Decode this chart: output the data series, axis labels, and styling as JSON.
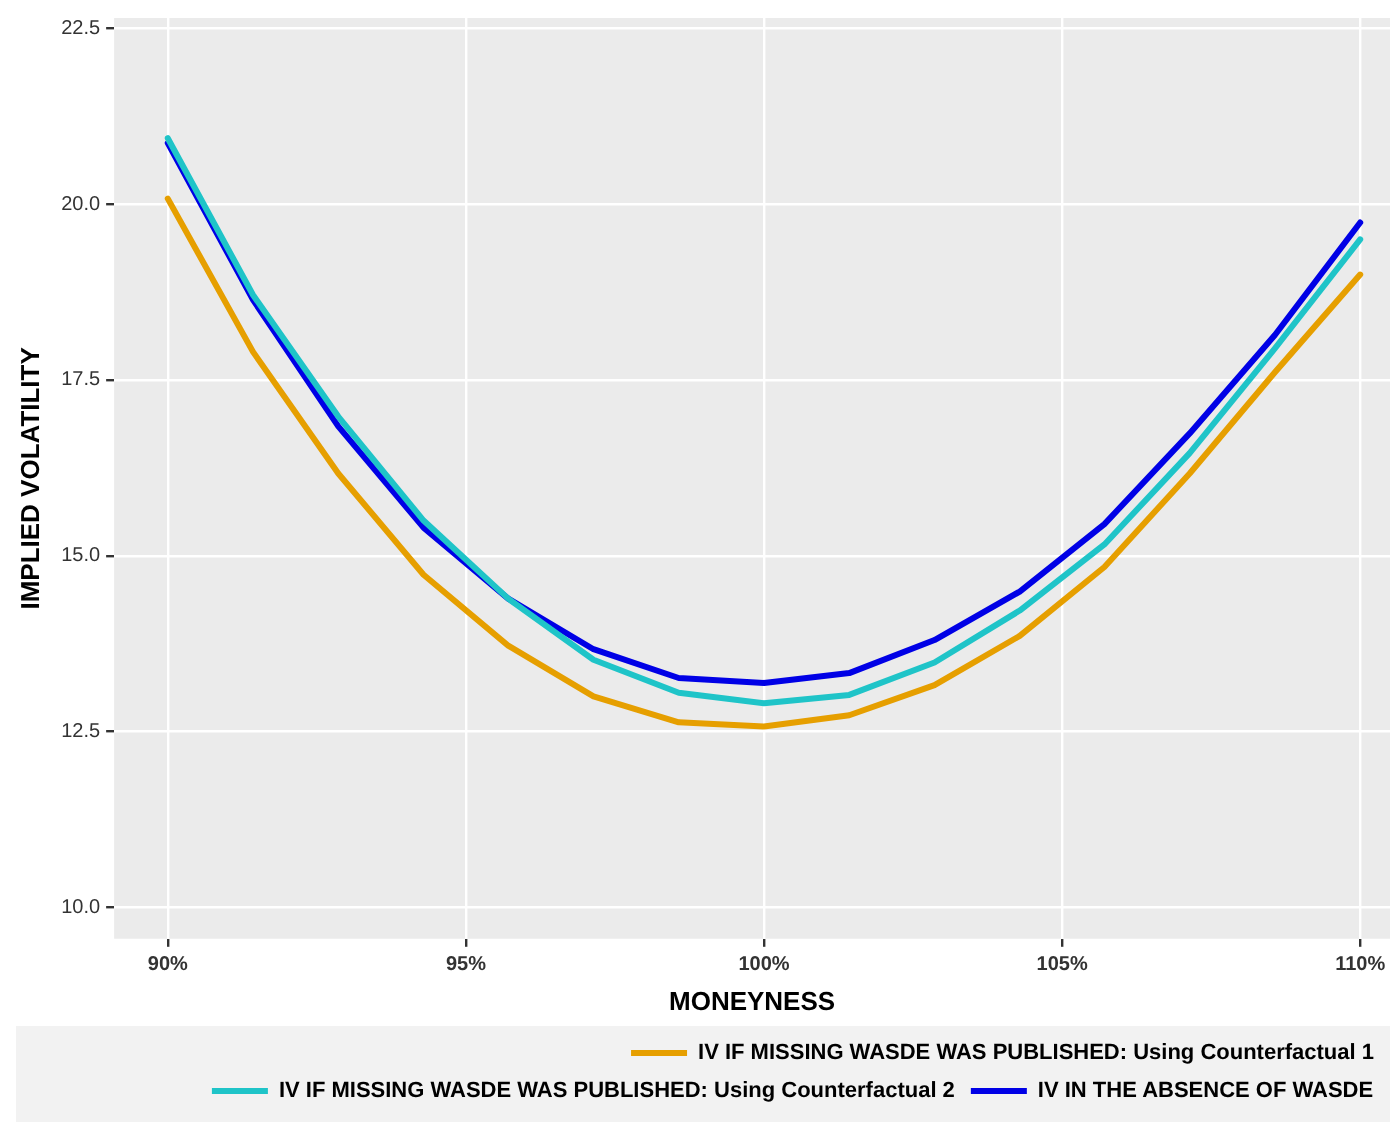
{
  "chart_data": {
    "type": "line",
    "xlabel": "MONEYNESS",
    "ylabel": "IMPLIED VOLATILITY",
    "x": [
      90,
      91.43,
      92.86,
      94.29,
      95.71,
      97.14,
      98.57,
      100,
      101.43,
      102.86,
      104.29,
      105.71,
      107.14,
      108.57,
      110
    ],
    "series": [
      {
        "name": "IV IF MISSING WASDE WAS PUBLISHED: Using Counterfactual 1",
        "color": "#e69f00",
        "values": [
          20.08,
          17.9,
          16.17,
          14.73,
          13.72,
          13.0,
          12.63,
          12.57,
          12.73,
          13.16,
          13.86,
          14.84,
          16.17,
          17.61,
          19.0
        ]
      },
      {
        "name": "IV IF MISSING WASDE WAS PUBLISHED: Using Counterfactual 2",
        "color": "#1fc4c8",
        "values": [
          20.94,
          18.71,
          16.98,
          15.5,
          14.39,
          13.52,
          13.05,
          12.9,
          13.02,
          13.48,
          14.22,
          15.16,
          16.46,
          17.95,
          19.5
        ]
      },
      {
        "name": "IV IN THE ABSENCE OF WASDE",
        "color": "#0000e6",
        "values": [
          20.87,
          18.64,
          16.84,
          15.4,
          14.39,
          13.67,
          13.26,
          13.19,
          13.33,
          13.8,
          14.49,
          15.45,
          16.74,
          18.14,
          19.74
        ]
      }
    ],
    "xlim": [
      89.1,
      110.5
    ],
    "xticks": [
      {
        "value": 90,
        "label": "90%"
      },
      {
        "value": 95,
        "label": "95%"
      },
      {
        "value": 100,
        "label": "100%"
      },
      {
        "value": 105,
        "label": "105%"
      },
      {
        "value": 110,
        "label": "110%"
      }
    ],
    "ylim": [
      9.55,
      22.65
    ],
    "yticks": [
      {
        "value": 10,
        "label": "10.0"
      },
      {
        "value": 12.5,
        "label": "12.5"
      },
      {
        "value": 15,
        "label": "15.0"
      },
      {
        "value": 17.5,
        "label": "17.5"
      },
      {
        "value": 20,
        "label": "20.0"
      },
      {
        "value": 22.5,
        "label": "22.5"
      }
    ],
    "grid": true,
    "legend": "bottom right",
    "marker": "none",
    "line_style": "solid"
  }
}
